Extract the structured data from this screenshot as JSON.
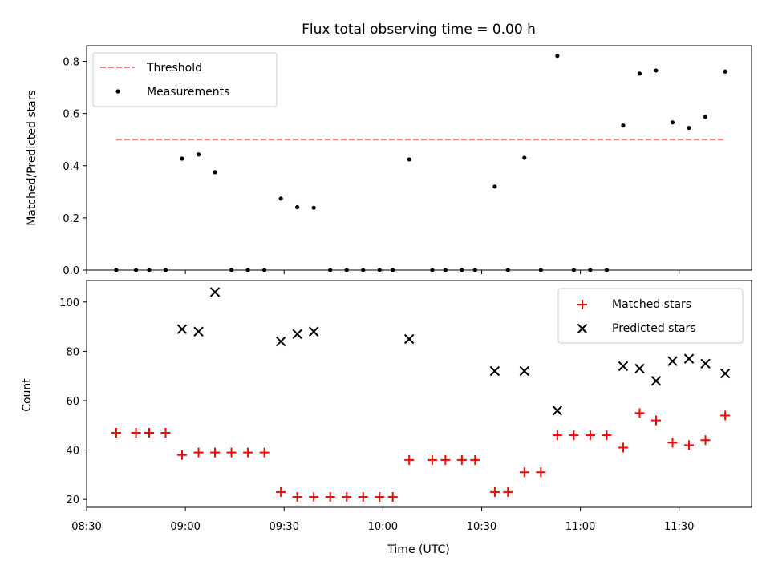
{
  "chart_data": [
    {
      "type": "scatter",
      "title": "Flux total observing time = 0.00 h",
      "xlabel": "",
      "ylabel": "Matched/Predicted stars",
      "ylim": [
        0,
        0.86
      ],
      "yticks": [
        "0.0",
        "0.2",
        "0.4",
        "0.6",
        "0.8"
      ],
      "x_axis": "shared-time",
      "grid": false,
      "legend_position": "upper-left",
      "threshold": {
        "name": "Threshold",
        "value": 0.5,
        "x_start": "08:39",
        "x_end": "11:44",
        "color": "#ff7f7f",
        "style": "dashed"
      },
      "series": [
        {
          "name": "Measurements",
          "color": "#000000",
          "marker": "dot",
          "points": [
            {
              "x": "08:39",
              "y": 0.0
            },
            {
              "x": "08:45",
              "y": 0.0
            },
            {
              "x": "08:49",
              "y": 0.0
            },
            {
              "x": "08:54",
              "y": 0.0
            },
            {
              "x": "08:59",
              "y": 0.427
            },
            {
              "x": "09:04",
              "y": 0.443
            },
            {
              "x": "09:09",
              "y": 0.375
            },
            {
              "x": "09:14",
              "y": 0.0
            },
            {
              "x": "09:19",
              "y": 0.0
            },
            {
              "x": "09:24",
              "y": 0.0
            },
            {
              "x": "09:29",
              "y": 0.274
            },
            {
              "x": "09:34",
              "y": 0.241
            },
            {
              "x": "09:39",
              "y": 0.239
            },
            {
              "x": "09:44",
              "y": 0.0
            },
            {
              "x": "09:49",
              "y": 0.0
            },
            {
              "x": "09:54",
              "y": 0.0
            },
            {
              "x": "09:59",
              "y": 0.0
            },
            {
              "x": "10:03",
              "y": 0.0
            },
            {
              "x": "10:08",
              "y": 0.424
            },
            {
              "x": "10:15",
              "y": 0.0
            },
            {
              "x": "10:19",
              "y": 0.0
            },
            {
              "x": "10:24",
              "y": 0.0
            },
            {
              "x": "10:28",
              "y": 0.0
            },
            {
              "x": "10:34",
              "y": 0.32
            },
            {
              "x": "10:38",
              "y": 0.0
            },
            {
              "x": "10:43",
              "y": 0.43
            },
            {
              "x": "10:48",
              "y": 0.0
            },
            {
              "x": "10:53",
              "y": 0.821
            },
            {
              "x": "10:58",
              "y": 0.0
            },
            {
              "x": "11:03",
              "y": 0.0
            },
            {
              "x": "11:08",
              "y": 0.0
            },
            {
              "x": "11:13",
              "y": 0.554
            },
            {
              "x": "11:18",
              "y": 0.753
            },
            {
              "x": "11:23",
              "y": 0.765
            },
            {
              "x": "11:28",
              "y": 0.566
            },
            {
              "x": "11:33",
              "y": 0.545
            },
            {
              "x": "11:38",
              "y": 0.587
            },
            {
              "x": "11:44",
              "y": 0.761
            }
          ]
        }
      ]
    },
    {
      "type": "scatter",
      "title": "",
      "xlabel": "Time (UTC)",
      "ylabel": "Count",
      "ylim": [
        16.8,
        108.7
      ],
      "yticks": [
        "20",
        "40",
        "60",
        "80",
        "100"
      ],
      "x_axis": "shared-time",
      "xlim": [
        "08:30",
        "11:52"
      ],
      "xticks": [
        "08:30",
        "09:00",
        "09:30",
        "10:00",
        "10:30",
        "11:00",
        "11:30"
      ],
      "grid": false,
      "legend_position": "upper-right",
      "series": [
        {
          "name": "Matched stars",
          "color": "#ff0000",
          "marker": "plus",
          "points": [
            {
              "x": "08:39",
              "y": 47
            },
            {
              "x": "08:45",
              "y": 47
            },
            {
              "x": "08:49",
              "y": 47
            },
            {
              "x": "08:54",
              "y": 47
            },
            {
              "x": "08:59",
              "y": 38
            },
            {
              "x": "09:04",
              "y": 39
            },
            {
              "x": "09:09",
              "y": 39
            },
            {
              "x": "09:14",
              "y": 39
            },
            {
              "x": "09:19",
              "y": 39
            },
            {
              "x": "09:24",
              "y": 39
            },
            {
              "x": "09:29",
              "y": 23
            },
            {
              "x": "09:34",
              "y": 21
            },
            {
              "x": "09:39",
              "y": 21
            },
            {
              "x": "09:44",
              "y": 21
            },
            {
              "x": "09:49",
              "y": 21
            },
            {
              "x": "09:54",
              "y": 21
            },
            {
              "x": "09:59",
              "y": 21
            },
            {
              "x": "10:03",
              "y": 21
            },
            {
              "x": "10:08",
              "y": 36
            },
            {
              "x": "10:15",
              "y": 36
            },
            {
              "x": "10:19",
              "y": 36
            },
            {
              "x": "10:24",
              "y": 36
            },
            {
              "x": "10:28",
              "y": 36
            },
            {
              "x": "10:34",
              "y": 23
            },
            {
              "x": "10:38",
              "y": 23
            },
            {
              "x": "10:43",
              "y": 31
            },
            {
              "x": "10:48",
              "y": 31
            },
            {
              "x": "10:53",
              "y": 46
            },
            {
              "x": "10:58",
              "y": 46
            },
            {
              "x": "11:03",
              "y": 46
            },
            {
              "x": "11:08",
              "y": 46
            },
            {
              "x": "11:13",
              "y": 41
            },
            {
              "x": "11:18",
              "y": 55
            },
            {
              "x": "11:23",
              "y": 52
            },
            {
              "x": "11:28",
              "y": 43
            },
            {
              "x": "11:33",
              "y": 42
            },
            {
              "x": "11:38",
              "y": 44
            },
            {
              "x": "11:44",
              "y": 54
            }
          ]
        },
        {
          "name": "Predicted stars",
          "color": "#000000",
          "marker": "x",
          "points": [
            {
              "x": "08:59",
              "y": 89
            },
            {
              "x": "09:04",
              "y": 88
            },
            {
              "x": "09:09",
              "y": 104
            },
            {
              "x": "09:29",
              "y": 84
            },
            {
              "x": "09:34",
              "y": 87
            },
            {
              "x": "09:39",
              "y": 88
            },
            {
              "x": "10:08",
              "y": 85
            },
            {
              "x": "10:34",
              "y": 72
            },
            {
              "x": "10:43",
              "y": 72
            },
            {
              "x": "10:53",
              "y": 56
            },
            {
              "x": "11:13",
              "y": 74
            },
            {
              "x": "11:18",
              "y": 73
            },
            {
              "x": "11:23",
              "y": 68
            },
            {
              "x": "11:28",
              "y": 76
            },
            {
              "x": "11:33",
              "y": 77
            },
            {
              "x": "11:38",
              "y": 75
            },
            {
              "x": "11:44",
              "y": 71
            }
          ]
        }
      ]
    }
  ]
}
